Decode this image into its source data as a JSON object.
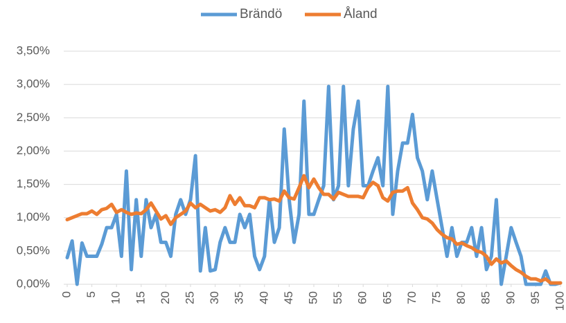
{
  "chart_data": {
    "type": "line",
    "x": [
      0,
      1,
      2,
      3,
      4,
      5,
      6,
      7,
      8,
      9,
      10,
      11,
      12,
      13,
      14,
      15,
      16,
      17,
      18,
      19,
      20,
      21,
      22,
      23,
      24,
      25,
      26,
      27,
      28,
      29,
      30,
      31,
      32,
      33,
      34,
      35,
      36,
      37,
      38,
      39,
      40,
      41,
      42,
      43,
      44,
      45,
      46,
      47,
      48,
      49,
      50,
      51,
      52,
      53,
      54,
      55,
      56,
      57,
      58,
      59,
      60,
      61,
      62,
      63,
      64,
      65,
      66,
      67,
      68,
      69,
      70,
      71,
      72,
      73,
      74,
      75,
      76,
      77,
      78,
      79,
      80,
      81,
      82,
      83,
      84,
      85,
      86,
      87,
      88,
      89,
      90,
      91,
      92,
      93,
      94,
      95,
      96,
      97,
      98,
      99,
      100
    ],
    "series": [
      {
        "name": "Brändö",
        "color": "#5b9bd5",
        "values": [
          0.4,
          0.65,
          0,
          0.62,
          0.42,
          0.42,
          0.42,
          0.6,
          0.85,
          0.85,
          1.05,
          0.42,
          1.7,
          0.22,
          1.27,
          0.42,
          1.27,
          0.85,
          1.05,
          0.63,
          0.63,
          0.42,
          1.05,
          1.27,
          1.05,
          1.27,
          1.93,
          0.2,
          0.85,
          0.2,
          0.22,
          0.63,
          0.85,
          0.63,
          0.63,
          1.05,
          0.85,
          1.05,
          0.42,
          0.22,
          0.42,
          1.27,
          0.63,
          0.85,
          2.33,
          1.27,
          0.63,
          1.05,
          2.75,
          1.05,
          1.05,
          1.27,
          1.48,
          2.97,
          1.27,
          1.48,
          2.97,
          1.48,
          2.33,
          2.75,
          1.48,
          1.48,
          1.7,
          1.9,
          1.48,
          2.97,
          1.05,
          1.7,
          2.12,
          2.12,
          2.55,
          1.9,
          1.7,
          1.27,
          1.7,
          1.27,
          0.85,
          0.42,
          0.85,
          0.42,
          0.63,
          0.63,
          0.85,
          0.42,
          0.85,
          0.22,
          0.42,
          1.27,
          0,
          0.42,
          0.85,
          0.63,
          0.42,
          0,
          0,
          0,
          0,
          0.2,
          0,
          0,
          0.02
        ]
      },
      {
        "name": "Åland",
        "color": "#ed7d31",
        "values": [
          0.97,
          1.0,
          1.03,
          1.06,
          1.06,
          1.1,
          1.05,
          1.12,
          1.14,
          1.2,
          1.08,
          1.12,
          1.08,
          1.05,
          1.07,
          1.06,
          1.12,
          1.22,
          1.1,
          0.98,
          1.03,
          0.9,
          1.0,
          1.05,
          1.1,
          1.22,
          1.15,
          1.2,
          1.15,
          1.1,
          1.12,
          1.08,
          1.15,
          1.33,
          1.2,
          1.3,
          1.18,
          1.18,
          1.15,
          1.3,
          1.3,
          1.27,
          1.28,
          1.25,
          1.4,
          1.3,
          1.28,
          1.45,
          1.63,
          1.45,
          1.58,
          1.45,
          1.35,
          1.35,
          1.28,
          1.38,
          1.35,
          1.32,
          1.32,
          1.32,
          1.3,
          1.45,
          1.53,
          1.48,
          1.3,
          1.25,
          1.38,
          1.4,
          1.4,
          1.45,
          1.22,
          1.12,
          1.0,
          0.98,
          0.92,
          0.82,
          0.75,
          0.7,
          0.68,
          0.6,
          0.62,
          0.58,
          0.55,
          0.5,
          0.48,
          0.42,
          0.3,
          0.38,
          0.32,
          0.35,
          0.28,
          0.22,
          0.18,
          0.12,
          0.08,
          0.08,
          0.05,
          0.08,
          0.02,
          0.02,
          0.02
        ]
      }
    ],
    "xlim": [
      0,
      100
    ],
    "xticks": [
      0,
      5,
      10,
      15,
      20,
      25,
      30,
      35,
      40,
      45,
      50,
      55,
      60,
      65,
      70,
      75,
      80,
      85,
      90,
      95,
      100
    ],
    "ylim": [
      0,
      3.5
    ],
    "yticks": [
      {
        "value": 0,
        "label": "0,00%"
      },
      {
        "value": 0.5,
        "label": "0,50%"
      },
      {
        "value": 1,
        "label": "1,00%"
      },
      {
        "value": 1.5,
        "label": "1,50%"
      },
      {
        "value": 2,
        "label": "2,00%"
      },
      {
        "value": 2.5,
        "label": "2,50%"
      },
      {
        "value": 3,
        "label": "3,00%"
      },
      {
        "value": 3.5,
        "label": "3,50%"
      }
    ],
    "grid": true,
    "legend": "top"
  }
}
